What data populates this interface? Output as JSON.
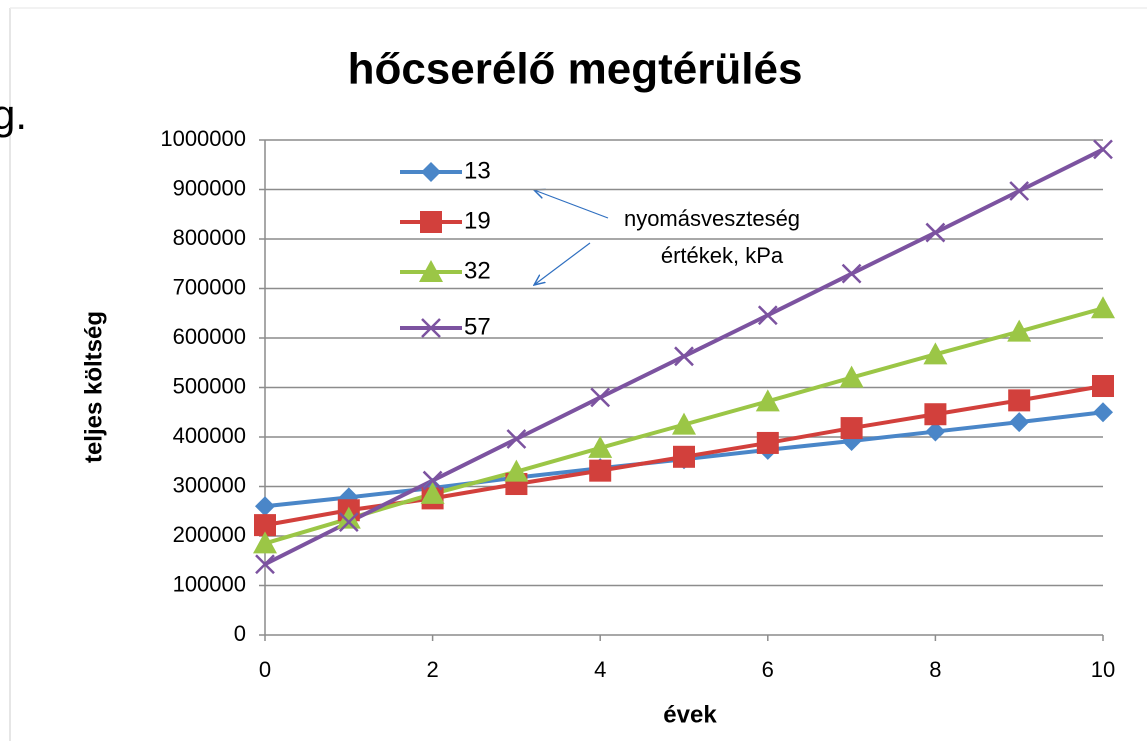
{
  "fragment": "g.",
  "chart_data": {
    "type": "line",
    "title": "hőcserélő megtérülés",
    "x_label": "évek",
    "y_label": "teljes költség",
    "annotation": [
      "nyomásveszteség",
      "értékek, kPa"
    ],
    "x": [
      0,
      1,
      2,
      3,
      4,
      5,
      6,
      7,
      8,
      9,
      10
    ],
    "xlim": [
      0,
      10
    ],
    "xticks": [
      0,
      2,
      4,
      6,
      8,
      10
    ],
    "ylim": [
      0,
      1000000
    ],
    "yticks": [
      0,
      100000,
      200000,
      300000,
      400000,
      500000,
      600000,
      700000,
      800000,
      900000,
      1000000
    ],
    "grid": true,
    "legend": "upper left",
    "series": [
      {
        "name": "13",
        "color": "#4a86c8",
        "marker": "diamond",
        "values": [
          260000,
          278000,
          297000,
          318000,
          337000,
          355000,
          374000,
          392000,
          411000,
          430000,
          450000
        ]
      },
      {
        "name": "19",
        "color": "#d2403c",
        "marker": "square",
        "values": [
          222000,
          252000,
          276000,
          305000,
          332000,
          360000,
          388000,
          418000,
          446000,
          474000,
          503000
        ]
      },
      {
        "name": "32",
        "color": "#9bc646",
        "marker": "triangle",
        "values": [
          185000,
          235000,
          285000,
          330000,
          378000,
          425000,
          472000,
          520000,
          567000,
          613000,
          660000
        ]
      },
      {
        "name": "57",
        "color": "#7c53a0",
        "marker": "x",
        "values": [
          143000,
          228000,
          312000,
          396000,
          480000,
          563000,
          646000,
          730000,
          813000,
          897000,
          981000
        ]
      }
    ]
  }
}
